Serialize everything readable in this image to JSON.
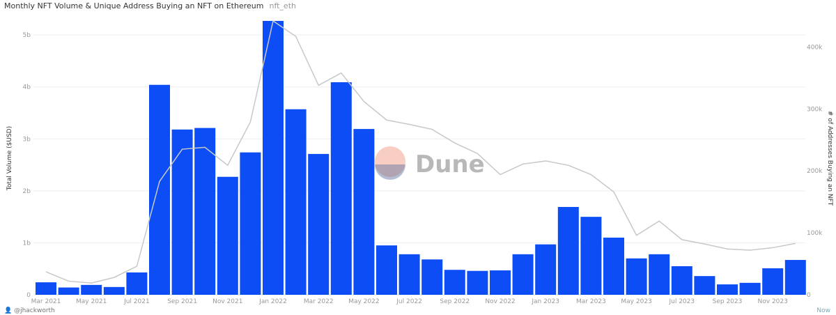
{
  "header": {
    "title": "Monthly NFT Volume & Unique Address Buying an NFT on Ethereum",
    "tag": "nft_eth"
  },
  "footer": {
    "author": "@jhackworth",
    "status": "Now"
  },
  "watermark": "Dune",
  "colors": {
    "bars": "#0c4df5",
    "line": "#c8c8c8",
    "grid": "#eeeeee"
  },
  "chart_data": {
    "type": "bar+line",
    "title": "Monthly NFT Volume & Unique Address Buying an NFT on Ethereum",
    "categories": [
      "Mar 2021",
      "Apr 2021",
      "May 2021",
      "Jun 2021",
      "Jul 2021",
      "Aug 2021",
      "Sep 2021",
      "Oct 2021",
      "Nov 2021",
      "Dec 2021",
      "Jan 2022",
      "Feb 2022",
      "Mar 2022",
      "Apr 2022",
      "May 2022",
      "Jun 2022",
      "Jul 2022",
      "Aug 2022",
      "Sep 2022",
      "Oct 2022",
      "Nov 2022",
      "Dec 2022",
      "Jan 2023",
      "Feb 2023",
      "Mar 2023",
      "Apr 2023",
      "May 2023",
      "Jun 2023",
      "Jul 2023",
      "Aug 2023",
      "Sep 2023",
      "Oct 2023",
      "Nov 2023",
      "Dec 2023"
    ],
    "x_tick_labels": [
      "Mar 2021",
      "May 2021",
      "Jul 2021",
      "Sep 2021",
      "Nov 2021",
      "Jan 2022",
      "Mar 2022",
      "May 2022",
      "Jul 2022",
      "Sep 2022",
      "Nov 2022",
      "Jan 2023",
      "Mar 2023",
      "May 2023",
      "Jul 2023",
      "Sep 2023",
      "Nov 2023"
    ],
    "series": [
      {
        "type": "bar",
        "axis": "left",
        "unit": "b",
        "values": [
          0.24,
          0.14,
          0.19,
          0.15,
          0.43,
          4.04,
          3.18,
          3.21,
          2.27,
          2.74,
          5.27,
          3.57,
          2.71,
          4.09,
          3.19,
          0.95,
          0.78,
          0.68,
          0.48,
          0.46,
          0.47,
          0.78,
          0.97,
          1.69,
          1.5,
          1.1,
          0.7,
          0.78,
          0.55,
          0.36,
          0.2,
          0.23,
          0.51,
          0.67
        ]
      },
      {
        "type": "line",
        "axis": "right",
        "unit": "k",
        "values": [
          37,
          22,
          19,
          28,
          46,
          183,
          235,
          238,
          209,
          279,
          442,
          417,
          338,
          358,
          312,
          282,
          275,
          267,
          245,
          228,
          194,
          211,
          216,
          209,
          194,
          166,
          96,
          119,
          89,
          82,
          74,
          72,
          76,
          83
        ]
      }
    ],
    "ylabel": "Total Volume ($USD)",
    "y2label": "# of Addresses Buying an NFT",
    "ylim": [
      0,
      5.27
    ],
    "y2lim": [
      0,
      442
    ],
    "yticks": [
      "0",
      "1b",
      "2b",
      "3b",
      "4b",
      "5b"
    ],
    "y2ticks": [
      "0",
      "100k",
      "200k",
      "300k",
      "400k"
    ],
    "grid": true
  }
}
